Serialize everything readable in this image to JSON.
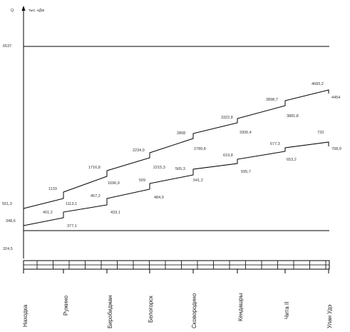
{
  "axis": {
    "y_symbol": "Q",
    "unit": "тыс. кДж"
  },
  "reference_lines": [
    {
      "label": "6537"
    },
    {
      "label": "324,5"
    }
  ],
  "series": [
    {
      "labels": [
        "551,3",
        "1133",
        "1113,1",
        "1716,8",
        "1696,9",
        "2234,9",
        "2215,3",
        "2808",
        "2789,8",
        "3322,8",
        "3306,4",
        "3898,7",
        "3881,8",
        "4683,2",
        "4454"
      ]
    },
    {
      "labels": [
        "348,6",
        "401,2",
        "377,1",
        "457,2",
        "433,1",
        "509",
        "484,9",
        "565,3",
        "541,2",
        "619,8",
        "595,7",
        "677,3",
        "653,2",
        "733",
        "708,9"
      ]
    }
  ],
  "stations": [
    "Находка",
    "Ружино",
    "Биробиджан",
    "Белогорск",
    "Сковородино",
    "Кендашры",
    "Чита II",
    "Улан Удэ"
  ]
}
